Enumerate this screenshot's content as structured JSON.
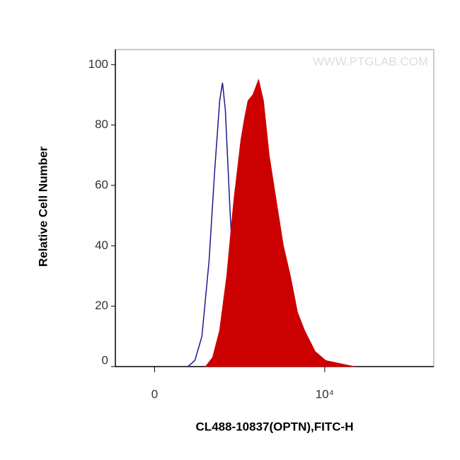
{
  "chart_data": {
    "type": "histogram-overlay",
    "watermark": "WWW.PTGLAB.COM",
    "y_label": "Relative Cell Number",
    "x_label": "CL488-10837(OPTN),FITC-H",
    "xscale": "symlog",
    "linthresh": 100,
    "xlim": [
      -190,
      195000
    ],
    "ylim": [
      0,
      105
    ],
    "xticks": [
      0,
      {
        "value": 10000,
        "label": "10⁴"
      }
    ],
    "yticks": [
      0,
      20,
      40,
      60,
      80,
      100
    ],
    "series": [
      {
        "color": "#1a1a8c",
        "fill": false,
        "x": [
          147,
          198,
          261,
          338,
          411,
          485,
          531,
          581,
          680,
          791,
          939,
          1159
        ],
        "values": [
          0,
          2,
          10,
          35,
          65,
          88,
          94,
          85,
          50,
          20,
          5,
          0
        ]
      },
      {
        "color": "#cc0000",
        "fill": true,
        "x": [
          298,
          382,
          485,
          608,
          758,
          939,
          1044,
          1159,
          1339,
          1579,
          1819,
          2139,
          2610,
          3190,
          3881,
          4720,
          5748,
          7690,
          10290,
          15140,
          22290
        ],
        "values": [
          0,
          3,
          12,
          30,
          55,
          75,
          82,
          88,
          90,
          95,
          88,
          70,
          55,
          40,
          30,
          18,
          12,
          5,
          2,
          1,
          0
        ]
      }
    ]
  }
}
